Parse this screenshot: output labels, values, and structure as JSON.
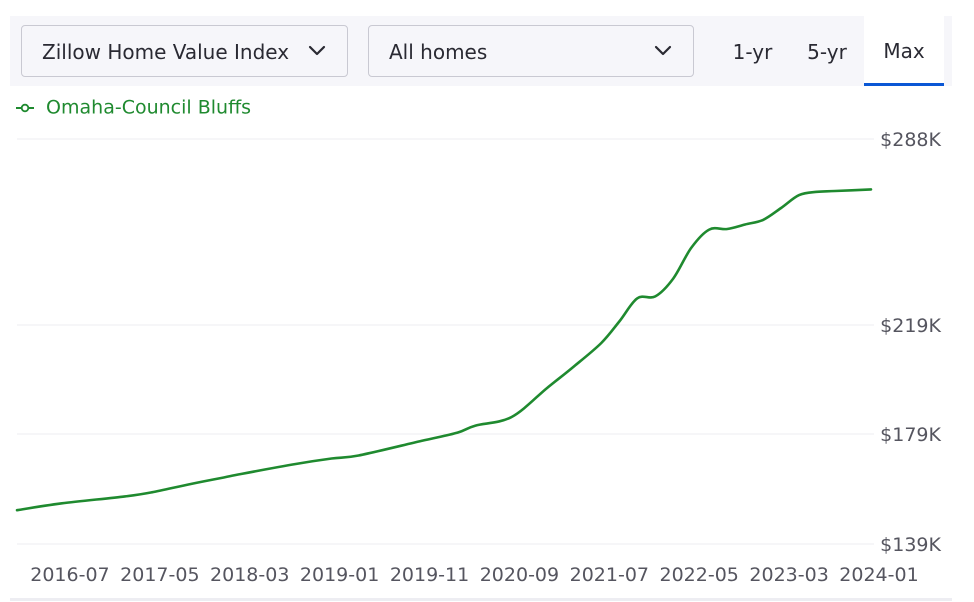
{
  "controls": {
    "metric_select": "Zillow Home Value Index",
    "home_type_select": "All homes",
    "range_tabs": [
      "1-yr",
      "5-yr",
      "Max"
    ],
    "active_tab": "Max"
  },
  "icons": {
    "dropdown": "chevron-down-icon",
    "legend_marker": "line-dot-marker-icon"
  },
  "colors": {
    "series": "#1f8a2f",
    "active_tab_underline": "#0a57d5"
  },
  "chart_data": {
    "type": "line",
    "title": "",
    "xlabel": "",
    "ylabel": "",
    "y_ticks": [
      139,
      179,
      219,
      288
    ],
    "y_tick_labels": [
      "$139K",
      "$179K",
      "$219K",
      "$288K"
    ],
    "ylim": [
      139,
      288
    ],
    "x_ticks": [
      "2016-07",
      "2017-05",
      "2018-03",
      "2019-01",
      "2019-11",
      "2020-09",
      "2021-07",
      "2022-05",
      "2023-03",
      "2024-01"
    ],
    "xlim": [
      "2016-02",
      "2024-01"
    ],
    "grid": true,
    "legend_position": "top-left",
    "series": [
      {
        "name": "Omaha-Council Bluffs",
        "points": [
          [
            "2016-02",
            151.3
          ],
          [
            "2016-07",
            153.8
          ],
          [
            "2017-02",
            156.3
          ],
          [
            "2017-05",
            157.8
          ],
          [
            "2017-09",
            160.6
          ],
          [
            "2018-01",
            163.2
          ],
          [
            "2018-03",
            164.5
          ],
          [
            "2018-09",
            168.1
          ],
          [
            "2019-01",
            170.1
          ],
          [
            "2019-04",
            171.2
          ],
          [
            "2019-11",
            176.5
          ],
          [
            "2020-03",
            179.5
          ],
          [
            "2020-05",
            182.1
          ],
          [
            "2020-09",
            185.2
          ],
          [
            "2021-01",
            196.0
          ],
          [
            "2021-04",
            203.9
          ],
          [
            "2021-07",
            212.4
          ],
          [
            "2021-09",
            220.3
          ],
          [
            "2021-11",
            228.9
          ],
          [
            "2022-01",
            229.6
          ],
          [
            "2022-03",
            236.2
          ],
          [
            "2022-05",
            247.6
          ],
          [
            "2022-07",
            254.4
          ],
          [
            "2022-09",
            254.6
          ],
          [
            "2022-11",
            256.3
          ],
          [
            "2023-01",
            258.0
          ],
          [
            "2023-03",
            262.4
          ],
          [
            "2023-05",
            267.2
          ],
          [
            "2023-07",
            268.4
          ],
          [
            "2023-09",
            268.7
          ],
          [
            "2024-01",
            269.3
          ]
        ]
      }
    ]
  }
}
